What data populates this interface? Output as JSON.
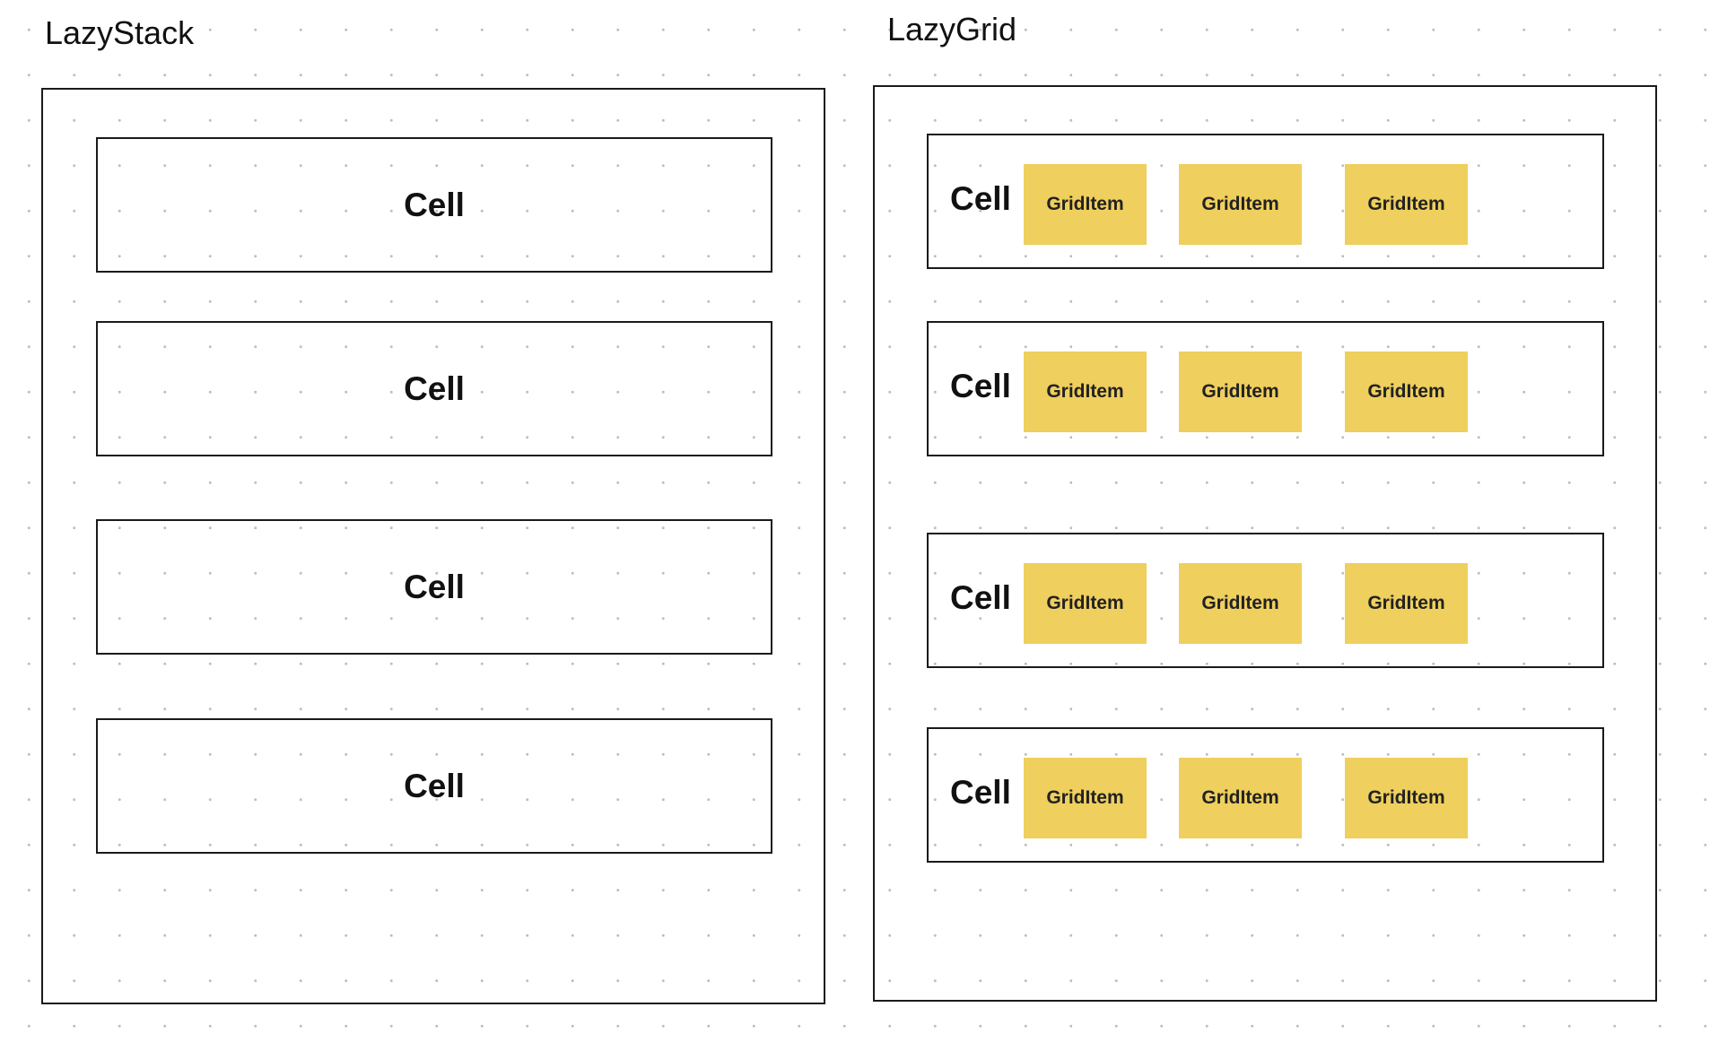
{
  "lazy_stack": {
    "title": "LazyStack",
    "cells": [
      {
        "label": "Cell"
      },
      {
        "label": "Cell"
      },
      {
        "label": "Cell"
      },
      {
        "label": "Cell"
      }
    ]
  },
  "lazy_grid": {
    "title": "LazyGrid",
    "cells": [
      {
        "label": "Cell",
        "items": [
          "GridItem",
          "GridItem",
          "GridItem"
        ]
      },
      {
        "label": "Cell",
        "items": [
          "GridItem",
          "GridItem",
          "GridItem"
        ]
      },
      {
        "label": "Cell",
        "items": [
          "GridItem",
          "GridItem",
          "GridItem"
        ]
      },
      {
        "label": "Cell",
        "items": [
          "GridItem",
          "GridItem",
          "GridItem"
        ]
      }
    ]
  },
  "colors": {
    "grid_item_fill": "#efcf5d",
    "border": "#1a1a1a",
    "dot_grid": "#bdbdbd"
  }
}
